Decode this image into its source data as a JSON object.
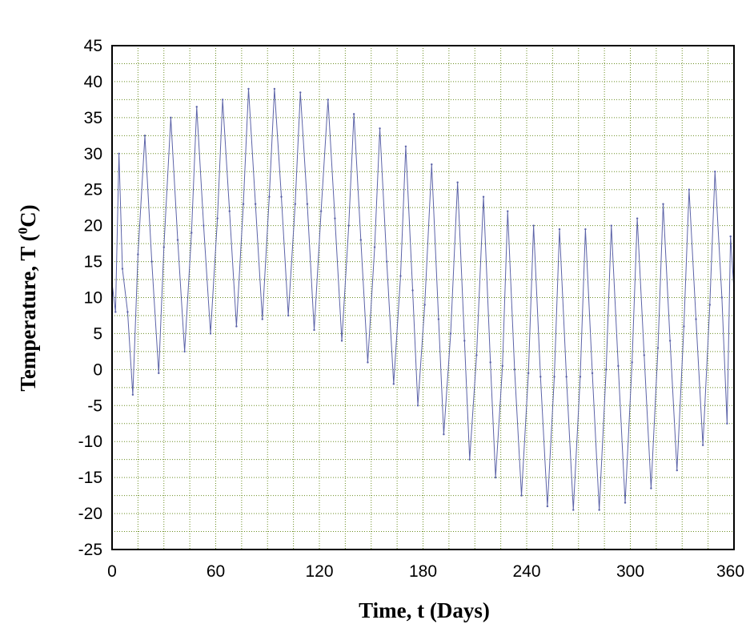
{
  "chart_data": {
    "type": "line",
    "title": "",
    "xlabel": "Time,  t (Days)",
    "ylabel_main": "Temperature,  T (",
    "ylabel_sup": "0",
    "ylabel_end": "C)",
    "xlim": [
      0,
      360
    ],
    "ylim": [
      -25,
      45
    ],
    "xticks": [
      0,
      60,
      120,
      180,
      240,
      300,
      360
    ],
    "xtick_labels": [
      "0",
      "60",
      "120",
      "180",
      "240",
      "300",
      "360"
    ],
    "yticks": [
      45,
      40,
      35,
      30,
      25,
      20,
      15,
      10,
      5,
      0,
      -5,
      -10,
      -15,
      -20,
      -25
    ],
    "ytick_labels": [
      "45",
      "40",
      "35",
      "30",
      "25",
      "20",
      "15",
      "10",
      "5",
      "0",
      "-5",
      "-10",
      "-15",
      "-20",
      "-25"
    ],
    "x_minor_grid_step": 15,
    "y_minor_grid_step": 2.5,
    "grid": true,
    "grid_color": "#6b8e23",
    "line_color": "#5c63a8",
    "series": [
      {
        "values": [
          {
            "x": 0,
            "y": 12
          },
          {
            "x": 2,
            "y": 8
          },
          {
            "x": 4,
            "y": 30
          },
          {
            "x": 6,
            "y": 14
          },
          {
            "x": 9,
            "y": 8
          },
          {
            "x": 12,
            "y": -3.5
          },
          {
            "x": 15,
            "y": 16
          },
          {
            "x": 19,
            "y": 32.5
          },
          {
            "x": 23,
            "y": 15
          },
          {
            "x": 27,
            "y": -0.5
          },
          {
            "x": 30,
            "y": 17
          },
          {
            "x": 34,
            "y": 35
          },
          {
            "x": 38,
            "y": 18
          },
          {
            "x": 42,
            "y": 2.5
          },
          {
            "x": 46,
            "y": 19
          },
          {
            "x": 49,
            "y": 36.5
          },
          {
            "x": 53,
            "y": 20
          },
          {
            "x": 57,
            "y": 5
          },
          {
            "x": 61,
            "y": 21
          },
          {
            "x": 64,
            "y": 37.5
          },
          {
            "x": 68,
            "y": 22
          },
          {
            "x": 72,
            "y": 6
          },
          {
            "x": 76,
            "y": 23
          },
          {
            "x": 79,
            "y": 39
          },
          {
            "x": 83,
            "y": 23
          },
          {
            "x": 87,
            "y": 7
          },
          {
            "x": 91,
            "y": 24
          },
          {
            "x": 94,
            "y": 39
          },
          {
            "x": 98,
            "y": 24
          },
          {
            "x": 102,
            "y": 7.5
          },
          {
            "x": 106,
            "y": 23
          },
          {
            "x": 109,
            "y": 38.5
          },
          {
            "x": 113,
            "y": 23
          },
          {
            "x": 117,
            "y": 5.5
          },
          {
            "x": 121,
            "y": 22
          },
          {
            "x": 125,
            "y": 37.5
          },
          {
            "x": 129,
            "y": 21
          },
          {
            "x": 133,
            "y": 4
          },
          {
            "x": 137,
            "y": 20
          },
          {
            "x": 140,
            "y": 35.5
          },
          {
            "x": 144,
            "y": 18
          },
          {
            "x": 148,
            "y": 1
          },
          {
            "x": 152,
            "y": 17
          },
          {
            "x": 155,
            "y": 33.5
          },
          {
            "x": 159,
            "y": 15
          },
          {
            "x": 163,
            "y": -2
          },
          {
            "x": 167,
            "y": 13
          },
          {
            "x": 170,
            "y": 31
          },
          {
            "x": 174,
            "y": 11
          },
          {
            "x": 177,
            "y": -5
          },
          {
            "x": 181,
            "y": 9
          },
          {
            "x": 185,
            "y": 28.5
          },
          {
            "x": 189,
            "y": 7
          },
          {
            "x": 192,
            "y": -9
          },
          {
            "x": 196,
            "y": 5
          },
          {
            "x": 200,
            "y": 26
          },
          {
            "x": 204,
            "y": 4
          },
          {
            "x": 207,
            "y": -12.5
          },
          {
            "x": 211,
            "y": 2
          },
          {
            "x": 215,
            "y": 24
          },
          {
            "x": 219,
            "y": 1
          },
          {
            "x": 222,
            "y": -15
          },
          {
            "x": 226,
            "y": 0.5
          },
          {
            "x": 229,
            "y": 22
          },
          {
            "x": 233,
            "y": 0
          },
          {
            "x": 237,
            "y": -17.5
          },
          {
            "x": 241,
            "y": -0.5
          },
          {
            "x": 244,
            "y": 20
          },
          {
            "x": 248,
            "y": -1
          },
          {
            "x": 252,
            "y": -19
          },
          {
            "x": 256,
            "y": -1
          },
          {
            "x": 259,
            "y": 19.5
          },
          {
            "x": 263,
            "y": -1
          },
          {
            "x": 267,
            "y": -19.5
          },
          {
            "x": 271,
            "y": -1
          },
          {
            "x": 274,
            "y": 19.5
          },
          {
            "x": 278,
            "y": -0.5
          },
          {
            "x": 282,
            "y": -19.5
          },
          {
            "x": 286,
            "y": 0
          },
          {
            "x": 289,
            "y": 20
          },
          {
            "x": 293,
            "y": 0.5
          },
          {
            "x": 297,
            "y": -18.5
          },
          {
            "x": 301,
            "y": 1
          },
          {
            "x": 304,
            "y": 21
          },
          {
            "x": 308,
            "y": 2
          },
          {
            "x": 312,
            "y": -16.5
          },
          {
            "x": 316,
            "y": 3
          },
          {
            "x": 319,
            "y": 23
          },
          {
            "x": 323,
            "y": 4
          },
          {
            "x": 327,
            "y": -14
          },
          {
            "x": 331,
            "y": 6
          },
          {
            "x": 334,
            "y": 25
          },
          {
            "x": 338,
            "y": 7
          },
          {
            "x": 342,
            "y": -10.5
          },
          {
            "x": 346,
            "y": 9
          },
          {
            "x": 349,
            "y": 27.5
          },
          {
            "x": 353,
            "y": 10
          },
          {
            "x": 356,
            "y": -7.5
          },
          {
            "x": 358,
            "y": 18.5
          },
          {
            "x": 360,
            "y": 11
          }
        ]
      }
    ]
  }
}
